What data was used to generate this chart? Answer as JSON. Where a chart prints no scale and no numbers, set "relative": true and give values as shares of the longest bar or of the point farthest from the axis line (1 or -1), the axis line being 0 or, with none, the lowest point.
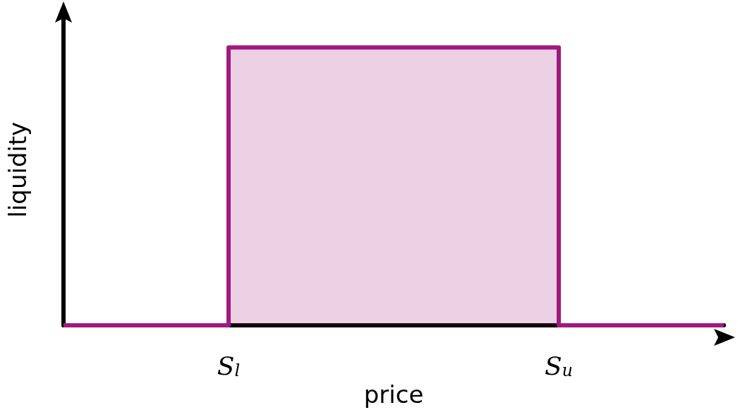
{
  "chart_data": {
    "type": "step",
    "relative": true,
    "xlabel": "price",
    "ylabel": "liquidity",
    "categories": [
      null,
      "S$_{l}$",
      null,
      "S$_{u}$",
      null
    ],
    "series": [
      {
        "color": "#a0197f",
        "values": [
          0,
          1,
          1,
          0,
          0
        ]
      }
    ],
    "grid": false,
    "marker": "none"
  }
}
